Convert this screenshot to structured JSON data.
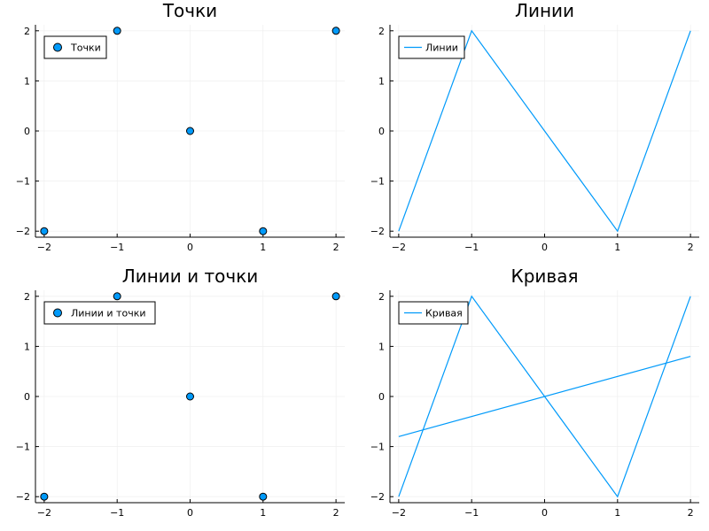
{
  "colors": {
    "series": "#009AFA",
    "marker_stroke": "#000000",
    "grid": "#ececec",
    "axis": "#000000",
    "background": "#ffffff"
  },
  "chart_data": [
    {
      "type": "scatter",
      "title": "Точки",
      "xlim": [
        -2.12,
        2.12
      ],
      "ylim": [
        -2.12,
        2.12
      ],
      "xticks": [
        -2,
        -1,
        0,
        1,
        2
      ],
      "yticks": [
        -2,
        -1,
        0,
        1,
        2
      ],
      "tick_labels": [
        "−2",
        "−1",
        "0",
        "1",
        "2"
      ],
      "grid": true,
      "legend_placement": "top-left",
      "series": [
        {
          "name": "Точки",
          "mode": "markers",
          "x": [
            -2,
            -1,
            0,
            1,
            2
          ],
          "y": [
            -2,
            2,
            0,
            -2,
            2
          ]
        }
      ]
    },
    {
      "type": "line",
      "title": "Линии",
      "xlim": [
        -2.12,
        2.12
      ],
      "ylim": [
        -2.12,
        2.12
      ],
      "xticks": [
        -2,
        -1,
        0,
        1,
        2
      ],
      "yticks": [
        -2,
        -1,
        0,
        1,
        2
      ],
      "tick_labels": [
        "−2",
        "−1",
        "0",
        "1",
        "2"
      ],
      "grid": true,
      "legend_placement": "top-left",
      "series": [
        {
          "name": "Линии",
          "mode": "lines",
          "x": [
            -2,
            -1,
            0,
            1,
            2
          ],
          "y": [
            -2,
            2,
            0,
            -2,
            2
          ]
        }
      ]
    },
    {
      "type": "scatter",
      "title": "Линии и точки",
      "xlim": [
        -2.12,
        2.12
      ],
      "ylim": [
        -2.12,
        2.12
      ],
      "xticks": [
        -2,
        -1,
        0,
        1,
        2
      ],
      "yticks": [
        -2,
        -1,
        0,
        1,
        2
      ],
      "tick_labels": [
        "−2",
        "−1",
        "0",
        "1",
        "2"
      ],
      "grid": true,
      "legend_placement": "top-left",
      "series": [
        {
          "name": "Линии и точки",
          "mode": "markers",
          "x": [
            -2,
            -1,
            0,
            1,
            2
          ],
          "y": [
            -2,
            2,
            0,
            -2,
            2
          ]
        }
      ]
    },
    {
      "type": "line",
      "title": "Кривая",
      "xlim": [
        -2.12,
        2.12
      ],
      "ylim": [
        -2.12,
        2.12
      ],
      "xticks": [
        -2,
        -1,
        0,
        1,
        2
      ],
      "yticks": [
        -2,
        -1,
        0,
        1,
        2
      ],
      "tick_labels": [
        "−2",
        "−1",
        "0",
        "1",
        "2"
      ],
      "grid": true,
      "legend_placement": "top-left",
      "series": [
        {
          "name": "Кривая",
          "mode": "lines",
          "x": [
            -2,
            -1,
            0,
            1,
            2
          ],
          "y": [
            -2,
            2,
            0,
            -2,
            2
          ]
        },
        {
          "name": "",
          "mode": "lines",
          "x": [
            -2,
            2
          ],
          "y": [
            -0.8,
            0.8
          ]
        }
      ]
    }
  ]
}
